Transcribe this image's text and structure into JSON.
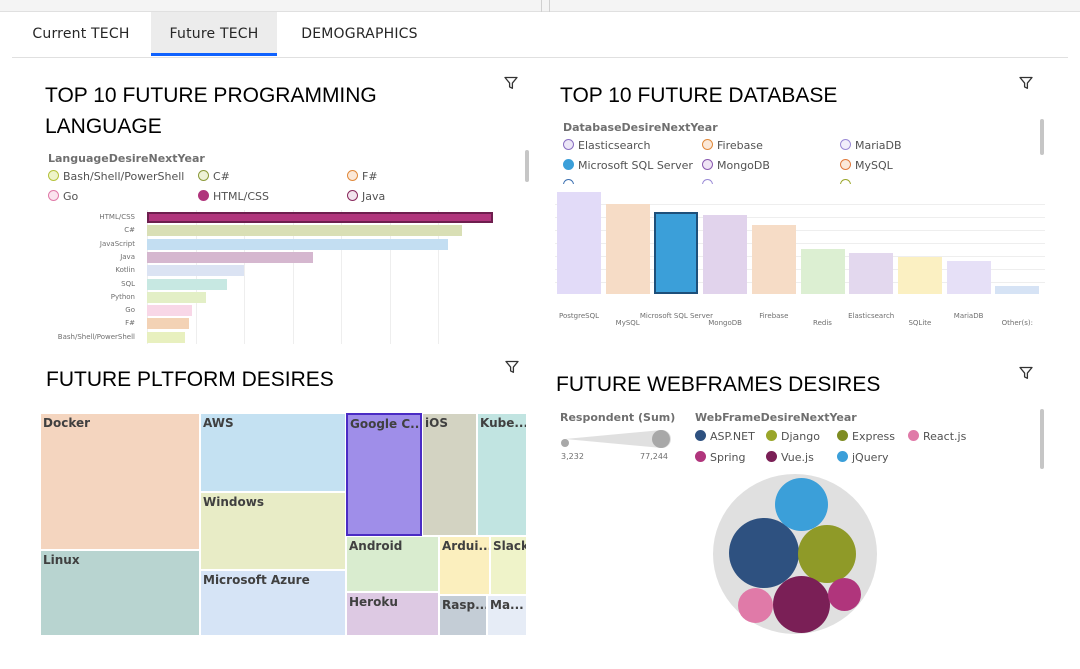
{
  "tabs": [
    {
      "label": "Current TECH"
    },
    {
      "label": "Future TECH"
    },
    {
      "label": "DEMOGRAPHICS"
    }
  ],
  "active_tab": "Future TECH",
  "icons": {
    "filter": "filter-icon"
  },
  "panels": {
    "languages": {
      "title_line1": "TOP 10 FUTURE PROGRAMMING",
      "title_line2": "LANGUAGE",
      "legend_title": "LanguageDesireNextYear",
      "legend": [
        {
          "label": "Bash/Shell/PowerShell",
          "color": "#d8e6a0",
          "stroke": "#b5c23c"
        },
        {
          "label": "C#",
          "color": "#d9dfb5",
          "stroke": "#8c9a3a"
        },
        {
          "label": "F#",
          "color": "#f3d2b5",
          "stroke": "#e08a3c"
        },
        {
          "label": "Go",
          "color": "#f7d3e4",
          "stroke": "#e07aa8"
        },
        {
          "label": "HTML/CSS",
          "color": "#b0357c",
          "stroke": "#b0357c"
        },
        {
          "label": "Java",
          "color": "#e3c6da",
          "stroke": "#8a2a5e"
        }
      ]
    },
    "database": {
      "title": "TOP 10 FUTURE DATABASE",
      "legend_title": "DatabaseDesireNextYear",
      "legend": [
        {
          "label": "Elasticsearch",
          "color": "#ddd3ee",
          "stroke": "#8a6fc2"
        },
        {
          "label": "Firebase",
          "color": "#f6dcc6",
          "stroke": "#e08a3c"
        },
        {
          "label": "MariaDB",
          "color": "#e6e0f7",
          "stroke": "#9a8ad6"
        },
        {
          "label": "Microsoft SQL Server",
          "color": "#3b9fd9",
          "stroke": "#3b9fd9"
        },
        {
          "label": "MongoDB",
          "color": "#e6d8ee",
          "stroke": "#8a5ab0"
        },
        {
          "label": "MySQL",
          "color": "#f6dcc6",
          "stroke": "#e07a3c"
        }
      ]
    },
    "platform": {
      "title": "FUTURE PLTFORM DESIRES"
    },
    "webframes": {
      "title": "FUTURE WEBFRAMES DESIRES",
      "size_legend_title": "Respondent (Sum)",
      "size_min": "3,232",
      "size_max": "77,244",
      "legend_title": "WebFrameDesireNextYear",
      "legend": [
        {
          "label": "ASP.NET",
          "color": "#2e5180"
        },
        {
          "label": "Django",
          "color": "#9aa62a"
        },
        {
          "label": "Express",
          "color": "#7e8c22"
        },
        {
          "label": "React.js",
          "color": "#e07aa8"
        },
        {
          "label": "Spring",
          "color": "#b0357c"
        },
        {
          "label": "Vue.js",
          "color": "#7a1f56"
        },
        {
          "label": "jQuery",
          "color": "#3b9fd9"
        }
      ]
    }
  },
  "chart_data": [
    {
      "type": "bar",
      "orientation": "horizontal",
      "title": "TOP 10 FUTURE PROGRAMMING LANGUAGE",
      "categories": [
        "HTML/CSS",
        "C#",
        "JavaScript",
        "Java",
        "Kotlin",
        "SQL",
        "Python",
        "Go",
        "F#",
        "Bash/Shell/PowerShell"
      ],
      "values": [
        100,
        91,
        87,
        48,
        28,
        23,
        17,
        13,
        12,
        11
      ],
      "colors": [
        "#b0357c",
        "#d9dfb5",
        "#c3def2",
        "#d5b7cf",
        "#dbe3f3",
        "#c7e8e2",
        "#e3efc6",
        "#f8d7e7",
        "#f3d2b5",
        "#e8f0bf"
      ],
      "selected": "HTML/CSS",
      "grid": true
    },
    {
      "type": "bar",
      "title": "TOP 10 FUTURE DATABASE",
      "categories": [
        "PostgreSQL",
        "MySQL",
        "Microsoft SQL Server",
        "MongoDB",
        "Firebase",
        "Redis",
        "Elasticsearch",
        "SQLite",
        "MariaDB",
        "Other(s):"
      ],
      "values": [
        100,
        88,
        80,
        77,
        68,
        44,
        40,
        36,
        32,
        8
      ],
      "colors": [
        "#e2dbf8",
        "#f6dcc6",
        "#3b9fd9",
        "#e1d3ec",
        "#f6dcc6",
        "#dcefd2",
        "#e3d8ee",
        "#fbf0c2",
        "#e6e0f7",
        "#d6e3f5"
      ],
      "selected": "Microsoft SQL Server",
      "grid": true
    },
    {
      "type": "treemap",
      "title": "FUTURE PLTFORM DESIRES",
      "items": [
        {
          "label": "Docker",
          "color": "#f4d5bf"
        },
        {
          "label": "Linux",
          "color": "#b8d4d0"
        },
        {
          "label": "AWS",
          "color": "#c4e1f2"
        },
        {
          "label": "Windows",
          "color": "#e8ecc6"
        },
        {
          "label": "Microsoft Azure",
          "color": "#d6e4f6"
        },
        {
          "label": "Google C...",
          "color": "#9f8ee9",
          "selected": true
        },
        {
          "label": "iOS",
          "color": "#d3d3c2"
        },
        {
          "label": "Kube...",
          "color": "#c1e4e1"
        },
        {
          "label": "Android",
          "color": "#d9eccf"
        },
        {
          "label": "Heroku",
          "color": "#ddc9e3"
        },
        {
          "label": "Ardui...",
          "color": "#fbefbe"
        },
        {
          "label": "Slack",
          "color": "#eff3c9"
        },
        {
          "label": "Rasp...",
          "color": "#c4cdd6"
        },
        {
          "label": "Ma...",
          "color": "#e6ecf6"
        }
      ]
    },
    {
      "type": "bubble",
      "title": "FUTURE WEBFRAMES DESIRES",
      "series": [
        {
          "name": "ASP.NET",
          "color": "#2e5180"
        },
        {
          "name": "Django",
          "color": "#8f9a28"
        },
        {
          "name": "jQuery",
          "color": "#3b9fd9"
        },
        {
          "name": "Vue.js",
          "color": "#7a1f56"
        },
        {
          "name": "React.js",
          "color": "#e07aa8"
        },
        {
          "name": "Spring",
          "color": "#b0357c"
        }
      ],
      "size_range": [
        3232,
        77244
      ]
    }
  ]
}
